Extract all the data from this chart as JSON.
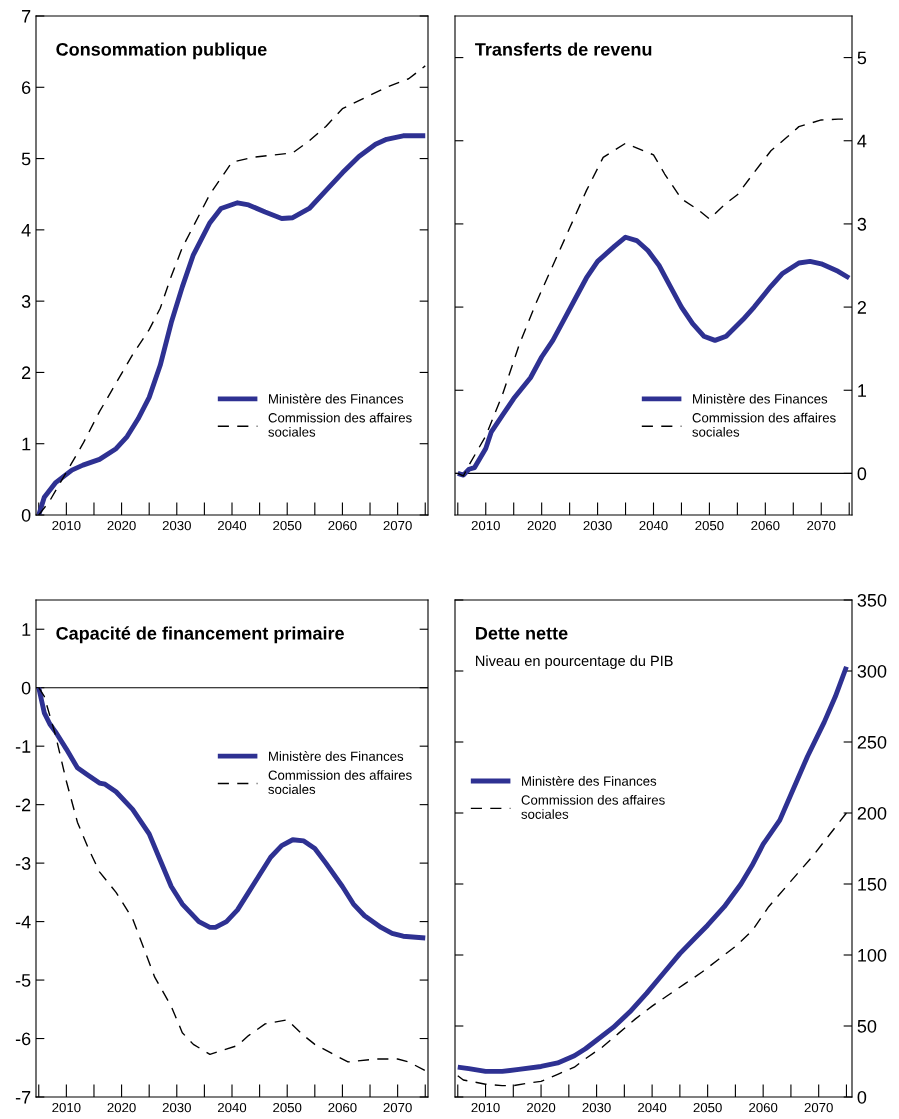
{
  "chart_data": [
    {
      "type": "line",
      "title": "Consommation publique",
      "legend": "lower right",
      "grid": false,
      "xlim": [
        2004.5,
        2075.5
      ],
      "xticks": [
        {
          "value": 2005,
          "label": null
        },
        2010,
        {
          "value": 2015,
          "label": null
        },
        2020,
        {
          "value": 2025,
          "label": null
        },
        2030,
        {
          "value": 2035,
          "label": null
        },
        2040,
        {
          "value": 2045,
          "label": null
        },
        2050,
        {
          "value": 2055,
          "label": null
        },
        2060,
        {
          "value": 2065,
          "label": null
        },
        2070,
        {
          "value": 2075,
          "label": null
        }
      ],
      "ylim": [
        0,
        7
      ],
      "yticks": [
        0,
        1,
        2,
        3,
        4,
        5,
        6,
        7
      ],
      "series": [
        {
          "name": "Ministère des Finances",
          "color": "#2e3192",
          "line_style": "solid",
          "x": [
            2005,
            2006,
            2008,
            2011,
            2013,
            2016,
            2019,
            2021,
            2023,
            2025,
            2027,
            2029,
            2031,
            2033,
            2036,
            2038,
            2041,
            2043,
            2046,
            2049,
            2051,
            2054,
            2057,
            2060,
            2063,
            2066,
            2068,
            2071,
            2075
          ],
          "values": [
            0,
            0.25,
            0.45,
            0.63,
            0.7,
            0.78,
            0.93,
            1.1,
            1.35,
            1.65,
            2.1,
            2.7,
            3.2,
            3.65,
            4.1,
            4.3,
            4.38,
            4.35,
            4.25,
            4.16,
            4.17,
            4.3,
            4.55,
            4.8,
            5.03,
            5.2,
            5.27,
            5.32,
            5.32
          ]
        },
        {
          "name": "Commission des affaires\nsociales",
          "color": "#000000",
          "line_style": "dashed",
          "x": [
            2005,
            2007,
            2010,
            2013,
            2016,
            2019,
            2022,
            2025,
            2027,
            2029,
            2031,
            2033,
            2036,
            2040,
            2044,
            2051,
            2054,
            2057,
            2060,
            2064,
            2068,
            2072,
            2075
          ],
          "values": [
            0,
            0.2,
            0.6,
            1.0,
            1.45,
            1.85,
            2.25,
            2.6,
            2.9,
            3.35,
            3.75,
            4.05,
            4.5,
            4.95,
            5.02,
            5.08,
            5.25,
            5.45,
            5.7,
            5.85,
            6.0,
            6.12,
            6.3
          ]
        }
      ]
    },
    {
      "type": "line",
      "title": "Transferts de revenu",
      "legend": "lower right",
      "grid": false,
      "xlim": [
        2004.5,
        2075.5
      ],
      "xticks": [
        {
          "value": 2005,
          "label": null
        },
        2010,
        {
          "value": 2015,
          "label": null
        },
        2020,
        {
          "value": 2025,
          "label": null
        },
        2030,
        {
          "value": 2035,
          "label": null
        },
        2040,
        {
          "value": 2045,
          "label": null
        },
        2050,
        {
          "value": 2055,
          "label": null
        },
        2060,
        {
          "value": 2065,
          "label": null
        },
        2070,
        {
          "value": 2075,
          "label": null
        }
      ],
      "y2lim": [
        -0.5,
        5.5
      ],
      "y2ticks": [
        0,
        1,
        2,
        3,
        4,
        5
      ],
      "ref_lines": [
        {
          "axis": "y2",
          "value": 0,
          "color": "#000000"
        }
      ],
      "series": [
        {
          "name": "Ministère des Finances",
          "color": "#2e3192",
          "line_style": "solid",
          "axis": "y2",
          "x": [
            2005,
            2006,
            2007,
            2008,
            2010,
            2011,
            2013,
            2015,
            2018,
            2020,
            2022,
            2024,
            2026,
            2028,
            2030,
            2033,
            2035,
            2037,
            2039,
            2041,
            2043,
            2045,
            2047,
            2049,
            2051,
            2053,
            2056,
            2058,
            2061,
            2063,
            2066,
            2068,
            2070,
            2073,
            2075
          ],
          "values": [
            0,
            -0.02,
            0.05,
            0.07,
            0.3,
            0.5,
            0.7,
            0.9,
            1.15,
            1.4,
            1.6,
            1.85,
            2.1,
            2.35,
            2.55,
            2.73,
            2.84,
            2.8,
            2.68,
            2.5,
            2.25,
            2.0,
            1.8,
            1.65,
            1.6,
            1.65,
            1.85,
            2.0,
            2.25,
            2.4,
            2.53,
            2.55,
            2.52,
            2.43,
            2.35
          ]
        },
        {
          "name": "Commission des affaires\nsociales",
          "color": "#000000",
          "line_style": "dashed",
          "axis": "y2",
          "x": [
            2005,
            2006,
            2007,
            2010,
            2013,
            2016,
            2019,
            2022,
            2025,
            2028,
            2031,
            2035,
            2040,
            2042,
            2045,
            2048,
            2050,
            2053,
            2055,
            2058,
            2061,
            2064,
            2066,
            2070,
            2073,
            2075
          ],
          "values": [
            0,
            -0.03,
            0.1,
            0.45,
            0.95,
            1.55,
            2.05,
            2.5,
            2.95,
            3.4,
            3.8,
            3.97,
            3.83,
            3.6,
            3.3,
            3.17,
            3.06,
            3.25,
            3.35,
            3.62,
            3.88,
            4.05,
            4.17,
            4.25,
            4.26,
            4.26
          ]
        }
      ]
    },
    {
      "type": "line",
      "title": "Capacité de financement primaire",
      "legend": "center right",
      "grid": false,
      "xlim": [
        2004.5,
        2075.5
      ],
      "xticks": [
        {
          "value": 2005,
          "label": null
        },
        2010,
        {
          "value": 2015,
          "label": null
        },
        2020,
        {
          "value": 2025,
          "label": null
        },
        2030,
        {
          "value": 2035,
          "label": null
        },
        2040,
        {
          "value": 2045,
          "label": null
        },
        2050,
        {
          "value": 2055,
          "label": null
        },
        2060,
        {
          "value": 2065,
          "label": null
        },
        2070,
        {
          "value": 2075,
          "label": null
        }
      ],
      "ylim": [
        -7,
        1.5
      ],
      "yticks": [
        -7,
        -6,
        -5,
        -4,
        -3,
        -2,
        -1,
        0,
        1
      ],
      "ref_lines": [
        {
          "axis": "y",
          "value": 0,
          "color": "#000000"
        }
      ],
      "series": [
        {
          "name": "Ministère des Finances",
          "color": "#2e3192",
          "line_style": "solid",
          "x": [
            2005,
            2006,
            2007,
            2008,
            2010,
            2012,
            2014,
            2016,
            2017,
            2019,
            2022,
            2025,
            2027,
            2029,
            2031,
            2034,
            2036,
            2037,
            2039,
            2041,
            2043,
            2045,
            2047,
            2049,
            2051,
            2053,
            2055,
            2057,
            2060,
            2062,
            2064,
            2067,
            2069,
            2071,
            2075
          ],
          "values": [
            0,
            -0.43,
            -0.62,
            -0.75,
            -1.05,
            -1.37,
            -1.5,
            -1.63,
            -1.65,
            -1.78,
            -2.08,
            -2.5,
            -2.95,
            -3.4,
            -3.7,
            -4.0,
            -4.1,
            -4.1,
            -4.0,
            -3.8,
            -3.5,
            -3.2,
            -2.9,
            -2.7,
            -2.6,
            -2.62,
            -2.75,
            -3.0,
            -3.4,
            -3.7,
            -3.9,
            -4.1,
            -4.2,
            -4.25,
            -4.28
          ]
        },
        {
          "name": "Commission des affaires\nsociales",
          "color": "#000000",
          "line_style": "dashed",
          "x": [
            2005,
            2006,
            2008,
            2010,
            2012,
            2014,
            2016,
            2019,
            2022,
            2024,
            2026,
            2029,
            2031,
            2033,
            2036,
            2041,
            2043,
            2046,
            2050,
            2053,
            2055,
            2058,
            2061,
            2066,
            2070,
            2072,
            2075
          ],
          "values": [
            0,
            -0.15,
            -0.8,
            -1.6,
            -2.3,
            -2.75,
            -3.15,
            -3.5,
            -3.95,
            -4.45,
            -4.95,
            -5.45,
            -5.9,
            -6.1,
            -6.27,
            -6.12,
            -5.95,
            -5.75,
            -5.68,
            -5.95,
            -6.1,
            -6.25,
            -6.4,
            -6.35,
            -6.35,
            -6.4,
            -6.55
          ]
        }
      ]
    },
    {
      "type": "line",
      "title": "Dette nette",
      "subtitle": "Niveau en pourcentage du PIB",
      "legend": "center left",
      "grid": false,
      "xlim": [
        2004.5,
        2076
      ],
      "xticks": [
        {
          "value": 2005,
          "label": null
        },
        2010,
        {
          "value": 2015,
          "label": null
        },
        2020,
        {
          "value": 2025,
          "label": null
        },
        2030,
        {
          "value": 2035,
          "label": null
        },
        2040,
        {
          "value": 2045,
          "label": null
        },
        2050,
        {
          "value": 2055,
          "label": null
        },
        2060,
        {
          "value": 2065,
          "label": null
        },
        2070,
        {
          "value": 2075,
          "label": null
        }
      ],
      "y2lim": [
        0,
        350
      ],
      "y2ticks": [
        0,
        50,
        100,
        150,
        200,
        250,
        300,
        350
      ],
      "series": [
        {
          "name": "Ministère des Finances",
          "color": "#2e3192",
          "line_style": "solid",
          "axis": "y2",
          "x": [
            2005,
            2007,
            2010,
            2013,
            2016,
            2020,
            2023,
            2026,
            2028,
            2030,
            2033,
            2036,
            2039,
            2042,
            2045,
            2048,
            2050,
            2053,
            2056,
            2058,
            2060,
            2063,
            2066,
            2068,
            2071,
            2073,
            2075
          ],
          "values": [
            21,
            20,
            18,
            18,
            19.5,
            21.5,
            24,
            29,
            34,
            40,
            49,
            60,
            73,
            87,
            101,
            113,
            121,
            134,
            150,
            163,
            178,
            195,
            222,
            240,
            264,
            282,
            303
          ]
        },
        {
          "name": "Commission des affaires\nsociales",
          "color": "#000000",
          "line_style": "dashed",
          "axis": "y2",
          "x": [
            2005,
            2006,
            2010,
            2013,
            2015,
            2018,
            2020,
            2023,
            2026,
            2028,
            2031,
            2034,
            2037,
            2040,
            2043,
            2046,
            2049,
            2052,
            2055,
            2058,
            2061,
            2065,
            2069,
            2075
          ],
          "values": [
            15,
            12,
            9,
            8,
            8,
            10,
            11,
            16,
            21,
            27,
            35,
            45,
            55,
            64,
            72,
            80,
            88,
            97,
            106,
            117,
            134,
            152,
            170,
            200
          ]
        }
      ]
    }
  ]
}
